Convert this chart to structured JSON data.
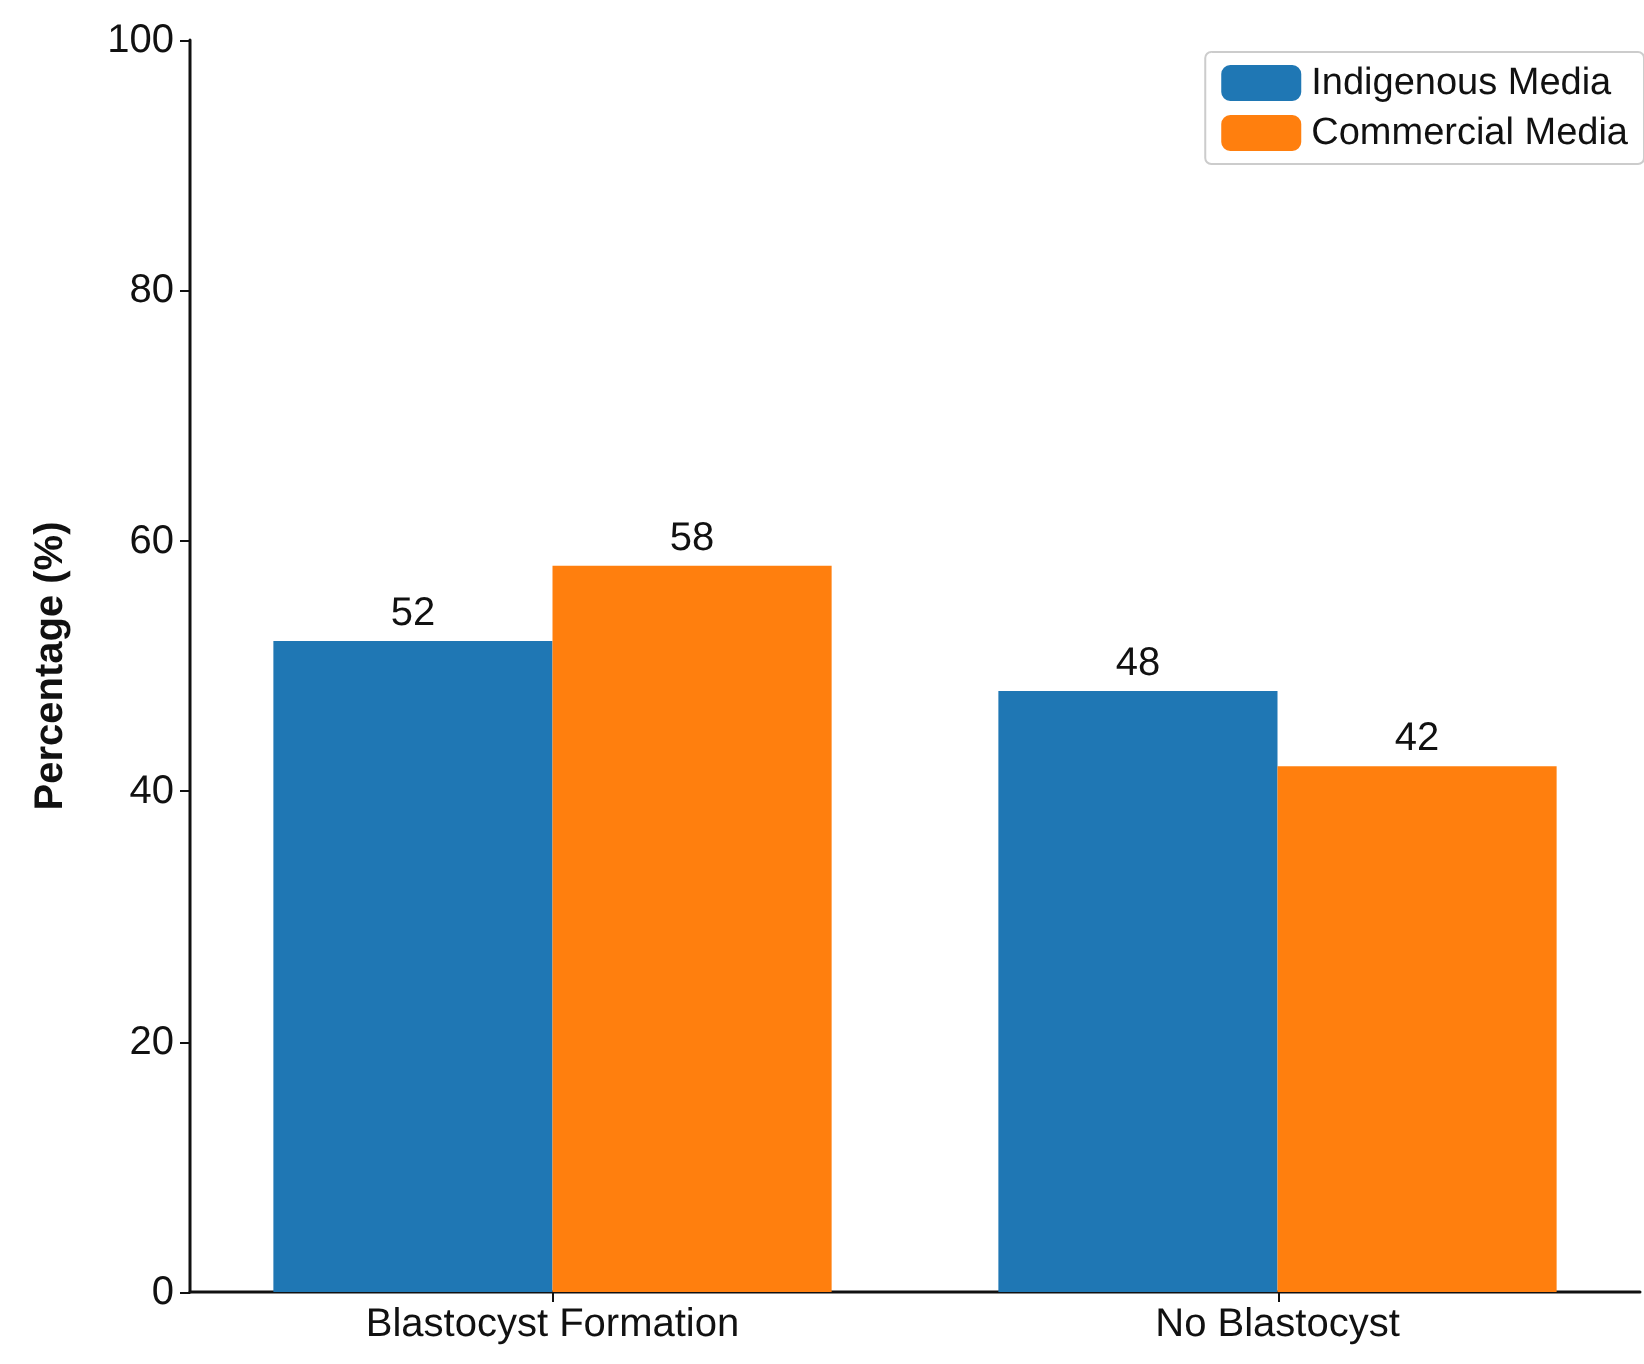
{
  "chart_data": {
    "type": "bar",
    "ylabel": "Percentage (%)",
    "categories": [
      "Blastocyst Formation",
      "No Blastocyst"
    ],
    "series": [
      {
        "name": "Indigenous Media",
        "color": "#1f77b4",
        "values": [
          52,
          48
        ]
      },
      {
        "name": "Commercial Media",
        "color": "#ff7f0e",
        "values": [
          58,
          42
        ]
      }
    ],
    "ylim": [
      0,
      100
    ],
    "yticks": [
      0,
      20,
      40,
      60,
      80,
      100
    ],
    "grid": false,
    "legend": "top right",
    "data_labels": true
  }
}
